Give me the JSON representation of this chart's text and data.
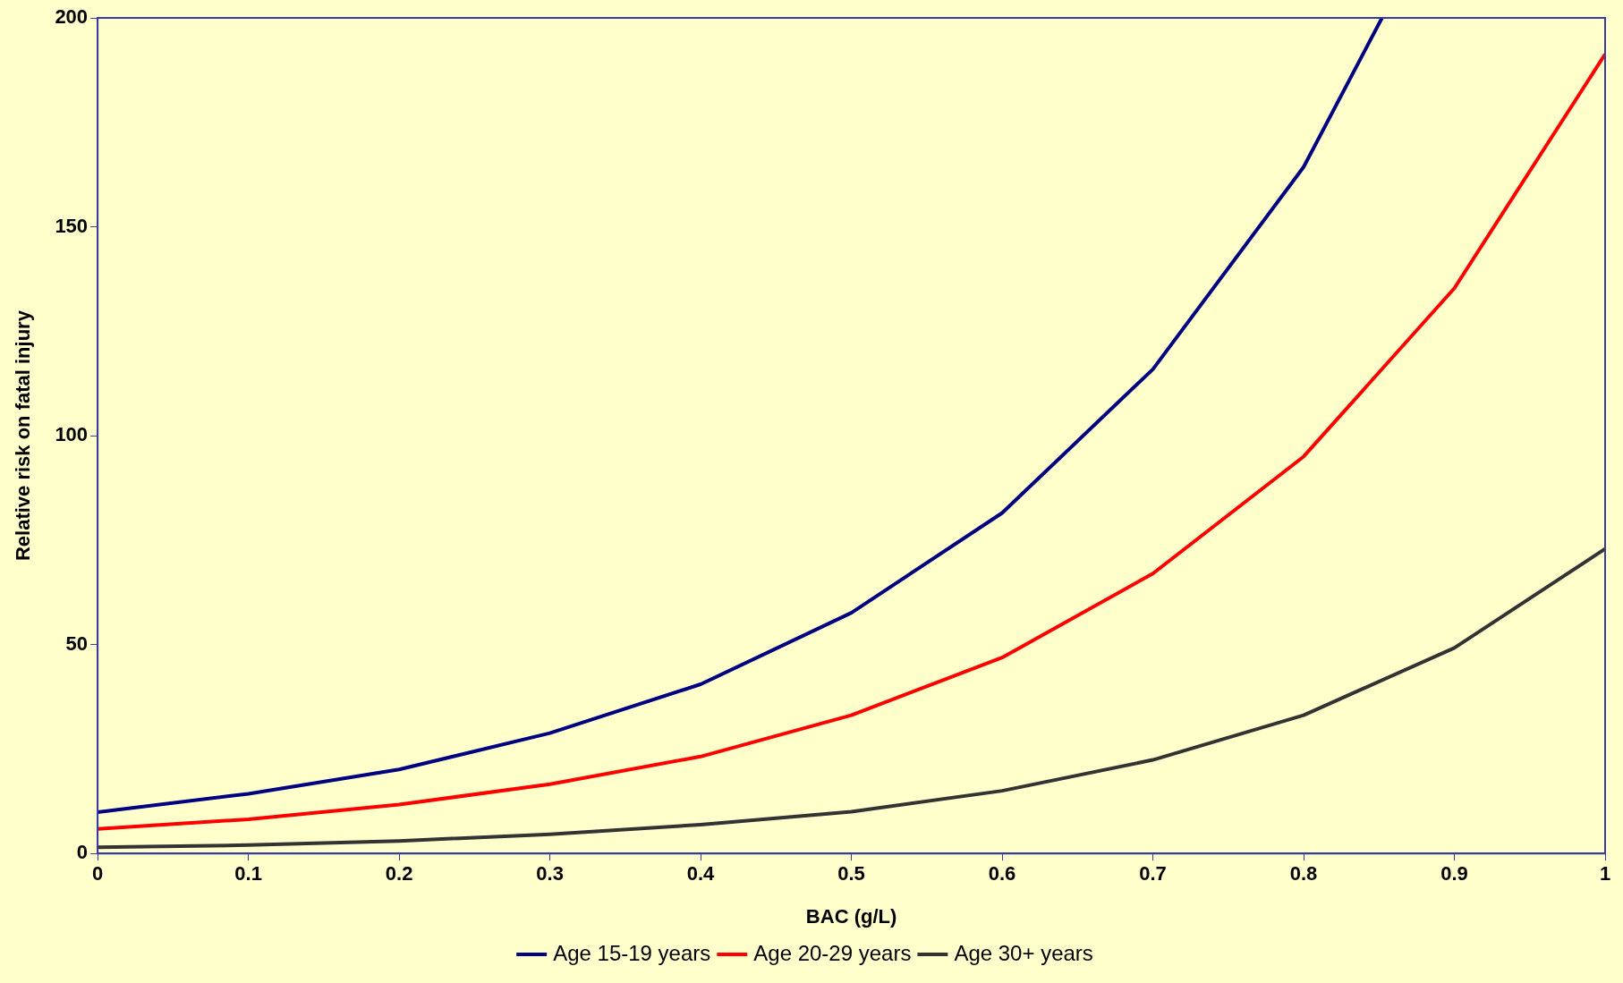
{
  "chart_data": {
    "type": "line",
    "xlabel": "BAC (g/L)",
    "ylabel": "Relative risk on fatal injury",
    "x": [
      0,
      0.1,
      0.2,
      0.3,
      0.4,
      0.5,
      0.6,
      0.7,
      0.8,
      0.9,
      1
    ],
    "series": [
      {
        "name": "Age 15-19 years",
        "color": "#000080",
        "x": [
          0,
          0.1,
          0.2,
          0.3,
          0.4,
          0.5,
          0.6,
          0.7,
          0.8,
          0.852
        ],
        "values": [
          9.9,
          14.3,
          20.1,
          28.8,
          40.5,
          57.6,
          81.5,
          115.9,
          164.3,
          200
        ]
      },
      {
        "name": "Age 20-29 years",
        "color": "#ff0000",
        "values": [
          5.9,
          8.2,
          11.7,
          16.6,
          23.2,
          33.1,
          46.9,
          67,
          95,
          135.3,
          191.3
        ]
      },
      {
        "name": "Age 30+ years",
        "color": "#333333",
        "values": [
          1.5,
          2,
          3,
          4.6,
          6.9,
          10,
          15,
          22.4,
          33.1,
          49.2,
          72.9
        ]
      }
    ],
    "xlim": [
      0,
      1
    ],
    "xticks": [
      0,
      0.1,
      0.2,
      0.3,
      0.4,
      0.5,
      0.6,
      0.7,
      0.8,
      0.9,
      1
    ],
    "ylim": [
      0,
      200
    ],
    "yticks": [
      0,
      50,
      100,
      150,
      200
    ],
    "grid": false,
    "legend": "bottom",
    "marker": "none",
    "line_style": "solid"
  }
}
